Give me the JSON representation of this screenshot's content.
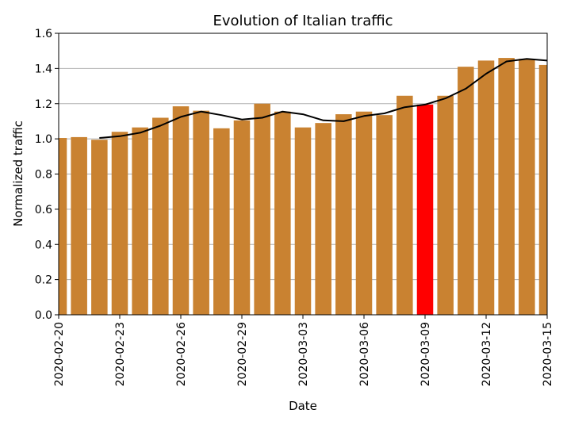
{
  "chart_data": {
    "type": "bar",
    "title": "Evolution of Italian traffic",
    "xlabel": "Date",
    "ylabel": "Normalized traffic",
    "ylim": [
      0,
      1.6
    ],
    "yticks": [
      "0.0",
      "0.2",
      "0.4",
      "0.6",
      "0.8",
      "1.0",
      "1.2",
      "1.4",
      "1.6"
    ],
    "grid": "horizontal",
    "categories": [
      "2020-02-20",
      "2020-02-21",
      "2020-02-22",
      "2020-02-23",
      "2020-02-24",
      "2020-02-25",
      "2020-02-26",
      "2020-02-27",
      "2020-02-28",
      "2020-02-29",
      "2020-03-01",
      "2020-03-02",
      "2020-03-03",
      "2020-03-04",
      "2020-03-05",
      "2020-03-06",
      "2020-03-07",
      "2020-03-08",
      "2020-03-09",
      "2020-03-10",
      "2020-03-11",
      "2020-03-12",
      "2020-03-13",
      "2020-03-14",
      "2020-03-15"
    ],
    "xticks": [
      "2020-02-20",
      "2020-02-23",
      "2020-02-26",
      "2020-02-29",
      "2020-03-03",
      "2020-03-06",
      "2020-03-09",
      "2020-03-12",
      "2020-03-15"
    ],
    "series": [
      {
        "type": "bar",
        "values": [
          1.005,
          1.01,
          0.995,
          1.04,
          1.065,
          1.12,
          1.185,
          1.16,
          1.06,
          1.105,
          1.2,
          1.155,
          1.065,
          1.09,
          1.14,
          1.155,
          1.135,
          1.245,
          1.195,
          1.245,
          1.41,
          1.445,
          1.46,
          1.455,
          1.42
        ],
        "color": "#c98231"
      },
      {
        "type": "line",
        "values": [
          null,
          null,
          1.005,
          1.015,
          1.035,
          1.075,
          1.125,
          1.155,
          1.135,
          1.11,
          1.12,
          1.155,
          1.14,
          1.105,
          1.1,
          1.13,
          1.145,
          1.18,
          1.195,
          1.23,
          1.285,
          1.37,
          1.44,
          1.455,
          1.445
        ],
        "color": "#000000"
      }
    ],
    "highlight": {
      "category": "2020-03-09",
      "color": "#ff0000"
    }
  }
}
